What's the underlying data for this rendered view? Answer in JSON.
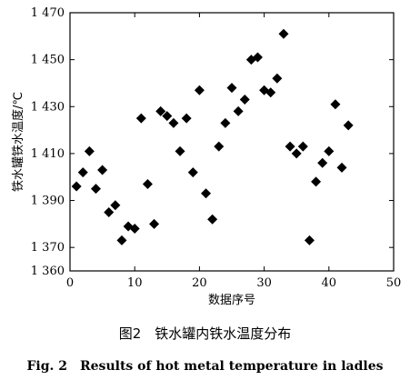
{
  "chart_data": {
    "type": "scatter",
    "xlabel": "数据序号",
    "ylabel": "铁水罐铁水温度/℃",
    "xlim": [
      0,
      50
    ],
    "ylim": [
      1360,
      1470
    ],
    "xticks": [
      0,
      10,
      20,
      30,
      40,
      50
    ],
    "xtick_labels": [
      "0",
      "10",
      "20",
      "30",
      "40",
      "50"
    ],
    "yticks": [
      1360,
      1370,
      1390,
      1410,
      1430,
      1450,
      1470
    ],
    "ytick_labels": [
      "1 360",
      "1 370",
      "1 390",
      "1 410",
      "1 430",
      "1 450",
      "1 470"
    ],
    "marker": "diamond",
    "color": "#000000",
    "grid": false,
    "x": [
      1,
      2,
      3,
      4,
      5,
      6,
      7,
      8,
      9,
      10,
      11,
      12,
      13,
      14,
      15,
      16,
      17,
      18,
      19,
      20,
      21,
      22,
      23,
      24,
      25,
      26,
      27,
      28,
      29,
      30,
      31,
      32,
      33,
      34,
      35,
      36,
      37,
      38,
      39,
      40,
      41,
      42,
      43
    ],
    "y": [
      1396,
      1402,
      1411,
      1395,
      1403,
      1385,
      1388,
      1373,
      1379,
      1378,
      1425,
      1397,
      1380,
      1428,
      1426,
      1423,
      1411,
      1425,
      1402,
      1437,
      1393,
      1382,
      1413,
      1423,
      1438,
      1428,
      1433,
      1450,
      1451,
      1437,
      1436,
      1442,
      1461,
      1413,
      1410,
      1413,
      1373,
      1398,
      1406,
      1411,
      1431,
      1404,
      1422
    ]
  },
  "caption": {
    "cn": "图2　铁水罐内铁水温度分布",
    "en": "Fig. 2　Results of hot metal temperature in ladles"
  }
}
